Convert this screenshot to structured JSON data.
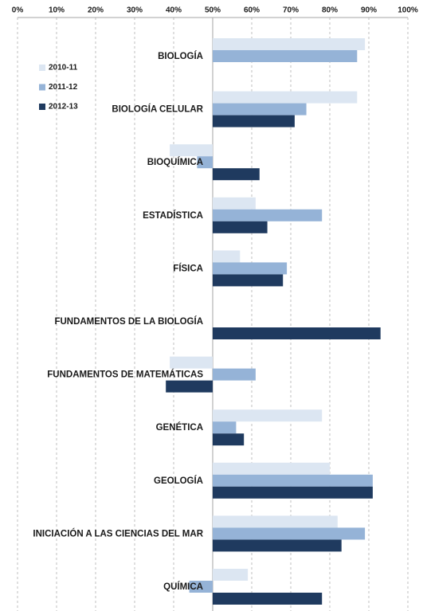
{
  "chart_data": {
    "type": "bar",
    "orientation": "horizontal",
    "base": 50,
    "categories": [
      "BIOLOGÍA",
      "BIOLOGÍA CELULAR",
      "BIOQUÍMICA",
      "ESTADÍSTICA",
      "FÍSICA",
      "FUNDAMENTOS DE LA BIOLOGÍA",
      "FUNDAMENTOS DE MATEMÁTICAS",
      "GENÉTICA",
      "GEOLOGÍA",
      "INICIACIÓN A LAS CIENCIAS DEL MAR",
      "QUÍMICA"
    ],
    "series": [
      {
        "name": "2010-11",
        "color": "#dce6f2",
        "values": [
          89,
          87,
          39,
          61,
          57,
          null,
          39,
          78,
          80,
          82,
          59
        ]
      },
      {
        "name": "2011-12",
        "color": "#95b3d7",
        "values": [
          87,
          74,
          46,
          78,
          69,
          null,
          61,
          56,
          91,
          89,
          44
        ]
      },
      {
        "name": "2012-13",
        "color": "#1f3a5f",
        "values": [
          null,
          71,
          62,
          64,
          68,
          93,
          38,
          58,
          91,
          83,
          78
        ]
      }
    ],
    "xlim": [
      0,
      100
    ],
    "xticks": [
      {
        "value": 0,
        "label": "0%"
      },
      {
        "value": 10,
        "label": "10%"
      },
      {
        "value": 20,
        "label": "20%"
      },
      {
        "value": 30,
        "label": "30%"
      },
      {
        "value": 40,
        "label": "40%"
      },
      {
        "value": 50,
        "label": "50%"
      },
      {
        "value": 60,
        "label": "60%"
      },
      {
        "value": 70,
        "label": "70%"
      },
      {
        "value": 80,
        "label": "80%"
      },
      {
        "value": 90,
        "label": "90%"
      },
      {
        "value": 100,
        "label": "100%"
      }
    ],
    "grid": true,
    "legend": "upper left"
  }
}
